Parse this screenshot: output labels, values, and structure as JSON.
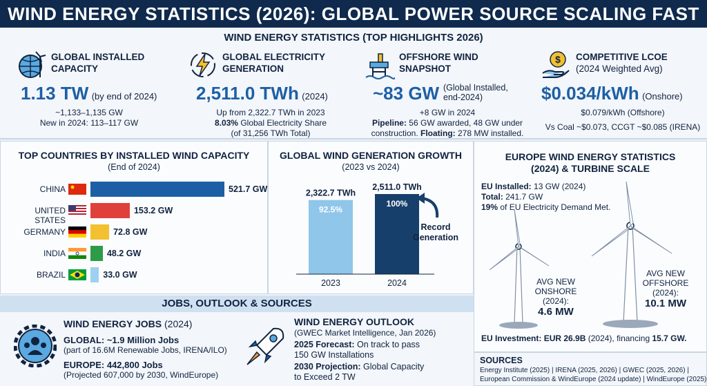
{
  "header": {
    "title": "WIND ENERGY STATISTICS (2026): GLOBAL POWER SOURCE SCALING FAST"
  },
  "highlights": {
    "section_title": "WIND ENERGY STATISTICS (TOP HIGHLIGHTS 2026)",
    "capacity": {
      "title1": "GLOBAL INSTALLED",
      "title2": "CAPACITY",
      "value": "1.13 TW",
      "suffix": "(by end of 2024)",
      "line1": "~1,133–1,135 GW",
      "line2": "New in 2024: 113–117 GW"
    },
    "generation": {
      "title1": "GLOBAL ELECTRICITY",
      "title2": "GENERATION",
      "value": "2,511.0 TWh",
      "suffix": "(2024)",
      "line1": "Up from 2,322.7 TWh in 2023",
      "line2_bold": "8.03%",
      "line2": " Global Electricity Share",
      "line3": "(of 31,256 TWh Total)"
    },
    "offshore": {
      "title1": "OFFSHORE WIND",
      "title2": "SNAPSHOT",
      "value": "~83 GW",
      "suffix1": "(Global Installed,",
      "suffix2": "end-2024)",
      "line1": "+8 GW in 2024",
      "line2_bold": "Pipeline:",
      "line2": " 56 GW awarded, 48 GW under",
      "line3": "construction. ",
      "line3_bold": "Floating:",
      "line3b": " 278 MW installed."
    },
    "lcoe": {
      "title1": "COMPETITIVE LCOE",
      "title2": "(2024 Weighted Avg)",
      "value": "$0.034/kWh",
      "suffix": "(Onshore)",
      "line1": "$0.079/kWh (Offshore)",
      "line2": "Vs Coal ~$0.073, CCGT ~$0.085 (IRENA)"
    }
  },
  "countries": {
    "title": "TOP COUNTRIES BY INSTALLED WIND CAPACITY",
    "subtitle": "(End of 2024)",
    "rows": [
      {
        "name": "CHINA",
        "label": "521.7 GW",
        "value": 521.7,
        "color": "#1d5fa5"
      },
      {
        "name": "UNITED STATES",
        "label": "153.2 GW",
        "value": 153.2,
        "color": "#e0403a"
      },
      {
        "name": "GERMANY",
        "label": "72.8 GW",
        "value": 72.8,
        "color": "#f3c12f"
      },
      {
        "name": "INDIA",
        "label": "48.2 GW",
        "value": 48.2,
        "color": "#2e9b48"
      },
      {
        "name": "BRAZIL",
        "label": "33.0 GW",
        "value": 33.0,
        "color": "#9ed0ef"
      }
    ]
  },
  "growth": {
    "title": "GLOBAL WIND GENERATION GROWTH",
    "subtitle": "(2023 vs 2024)",
    "bars": [
      {
        "year": "2023",
        "label": "2,322.7 TWh",
        "pct": "92.5%",
        "value": 2322.7,
        "color": "#8fc6ea"
      },
      {
        "year": "2024",
        "label": "2,511.0 TWh",
        "pct": "100%",
        "value": 2511.0,
        "color": "#173f6b"
      }
    ],
    "note1": "Record",
    "note2": "Generation"
  },
  "europe": {
    "title1": "EUROPE WIND ENERGY STATISTICS",
    "title2": "(2024) & TURBINE SCALE",
    "eu_installed_label": "EU Installed:",
    "eu_installed": " 13 GW (2024)",
    "total_label": "Total:",
    "total": " 241.7 GW",
    "share_bold": "19%",
    "share": " of EU Electricity Demand Met.",
    "onshore": {
      "l1": "AVG NEW",
      "l2": "ONSHORE",
      "l3": "(2024):",
      "value": "4.6 MW"
    },
    "offshore": {
      "l1": "AVG NEW",
      "l2": "OFFSHORE",
      "l3": "(2024):",
      "value": "10.1 MW"
    },
    "investment_label": "EU Investment:",
    "investment": " EUR 26.9B",
    "investment2": " (2024), financing ",
    "investment3": "15.7 GW."
  },
  "jobs": {
    "section_title": "JOBS, OUTLOOK & SOURCES",
    "title": "WIND ENERGY JOBS",
    "title_suffix": " (2024)",
    "global_bold": "GLOBAL: ~1.9 Million Jobs",
    "global_sub": "(part of 16.6M Renewable Jobs, IRENA/ILO)",
    "europe_bold": "EUROPE: 442,800 Jobs",
    "europe_sub": "(Projected 607,000 by 2030, WindEurope)"
  },
  "outlook": {
    "title": "WIND ENERGY OUTLOOK",
    "source": "(GWEC Market Intelligence, Jan 2026)",
    "f_bold": "2025 Forecast:",
    "f1": " On track to pass",
    "f2": "150 GW Installations",
    "p_bold": "2030 Projection:",
    "p1": " Global Capacity",
    "p2": "to Exceed 2 TW"
  },
  "sources": {
    "title": "SOURCES",
    "line1": "Energy Institute (2025) | IRENA (2025, 2026) | GWEC (2025, 2026) |",
    "line2": "European Commission & WindEurope (2024 update) | WindEurope (2025)"
  },
  "colors": {
    "navy": "#0f2a4d",
    "accent": "#1d5fa5",
    "light": "#cfe0f1"
  }
}
